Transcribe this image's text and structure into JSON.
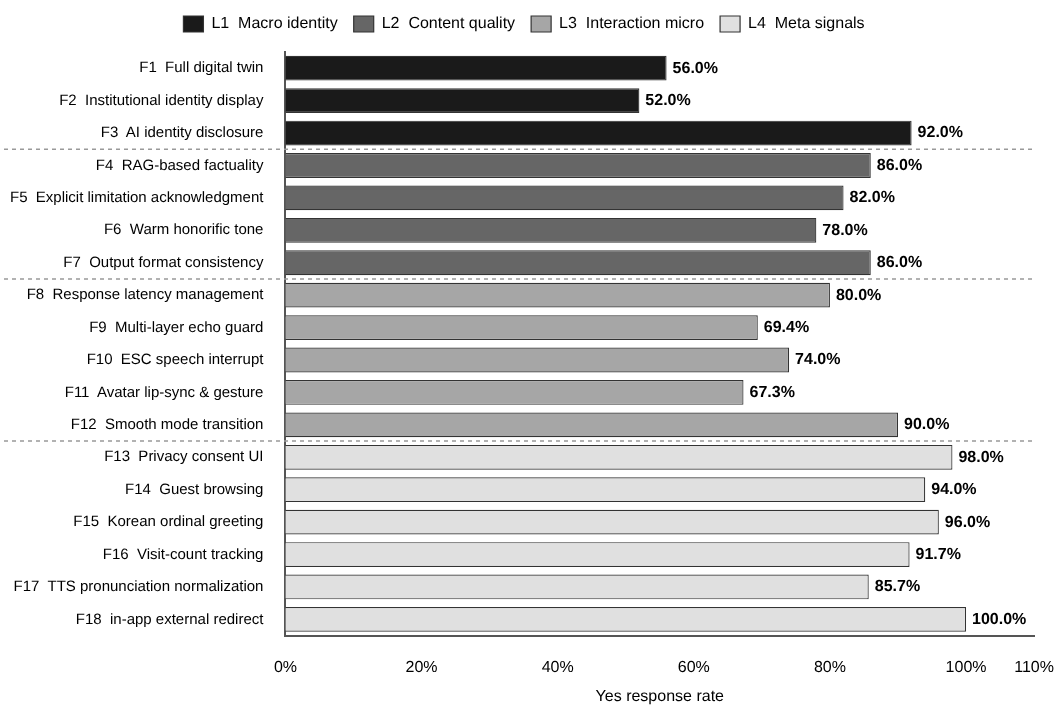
{
  "chart_data": {
    "type": "bar",
    "orientation": "horizontal",
    "xlabel": "Yes response rate",
    "legend": "top",
    "grid": false,
    "categories": [
      "F1  Full digital twin",
      "F2  Institutional identity display",
      "F3  AI identity disclosure",
      "F4  RAG-based factuality",
      "F5  Explicit limitation acknowledgment",
      "F6  Warm honorific tone",
      "F7  Output format consistency",
      "F8  Response latency management",
      "F9  Multi-layer echo guard",
      "F10  ESC speech interrupt",
      "F11  Avatar lip-sync & gesture",
      "F12  Smooth mode transition",
      "F13  Privacy consent UI",
      "F14  Guest browsing",
      "F15  Korean ordinal greeting",
      "F16  Visit-count tracking",
      "F17  TTS pronunciation normalization",
      "F18  in-app external redirect"
    ],
    "xlim": [
      0,
      110
    ],
    "xticks": [
      {
        "value": 0,
        "label": "0%"
      },
      {
        "value": 20,
        "label": "20%"
      },
      {
        "value": 40,
        "label": "40%"
      },
      {
        "value": 60,
        "label": "60%"
      },
      {
        "value": 80,
        "label": "80%"
      },
      {
        "value": 100,
        "label": "100%"
      },
      {
        "value": 110,
        "label": "110%"
      }
    ],
    "series": [
      {
        "name": "L1  Macro identity",
        "color": "#1a1a1a",
        "values": [
          56,
          52,
          92,
          null,
          null,
          null,
          null,
          null,
          null,
          null,
          null,
          null,
          null,
          null,
          null,
          null,
          null,
          null
        ],
        "value_labels": [
          "56.0%",
          "52.0%",
          "92.0%",
          null,
          null,
          null,
          null,
          null,
          null,
          null,
          null,
          null,
          null,
          null,
          null,
          null,
          null,
          null
        ]
      },
      {
        "name": "L2  Content quality",
        "color": "#666666",
        "values": [
          null,
          null,
          null,
          86,
          82,
          78,
          86,
          null,
          null,
          null,
          null,
          null,
          null,
          null,
          null,
          null,
          null,
          null
        ],
        "value_labels": [
          null,
          null,
          null,
          "86.0%",
          "82.0%",
          "78.0%",
          "86.0%",
          null,
          null,
          null,
          null,
          null,
          null,
          null,
          null,
          null,
          null,
          null
        ]
      },
      {
        "name": "L3  Interaction micro",
        "color": "#a6a6a6",
        "values": [
          null,
          null,
          null,
          null,
          null,
          null,
          null,
          80,
          69.4,
          74,
          67.3,
          90,
          null,
          null,
          null,
          null,
          null,
          null
        ],
        "value_labels": [
          null,
          null,
          null,
          null,
          null,
          null,
          null,
          "80.0%",
          "69.4%",
          "74.0%",
          "67.3%",
          "90.0%",
          null,
          null,
          null,
          null,
          null,
          null
        ]
      },
      {
        "name": "L4  Meta signals",
        "color": "#e0e0e0",
        "values": [
          null,
          null,
          null,
          null,
          null,
          null,
          null,
          null,
          null,
          null,
          null,
          null,
          98,
          94,
          96,
          91.7,
          85.7,
          100
        ],
        "value_labels": [
          null,
          null,
          null,
          null,
          null,
          null,
          null,
          null,
          null,
          null,
          null,
          null,
          "98.0%",
          "94.0%",
          "96.0%",
          "91.7%",
          "85.7%",
          "100.0%"
        ]
      }
    ]
  }
}
